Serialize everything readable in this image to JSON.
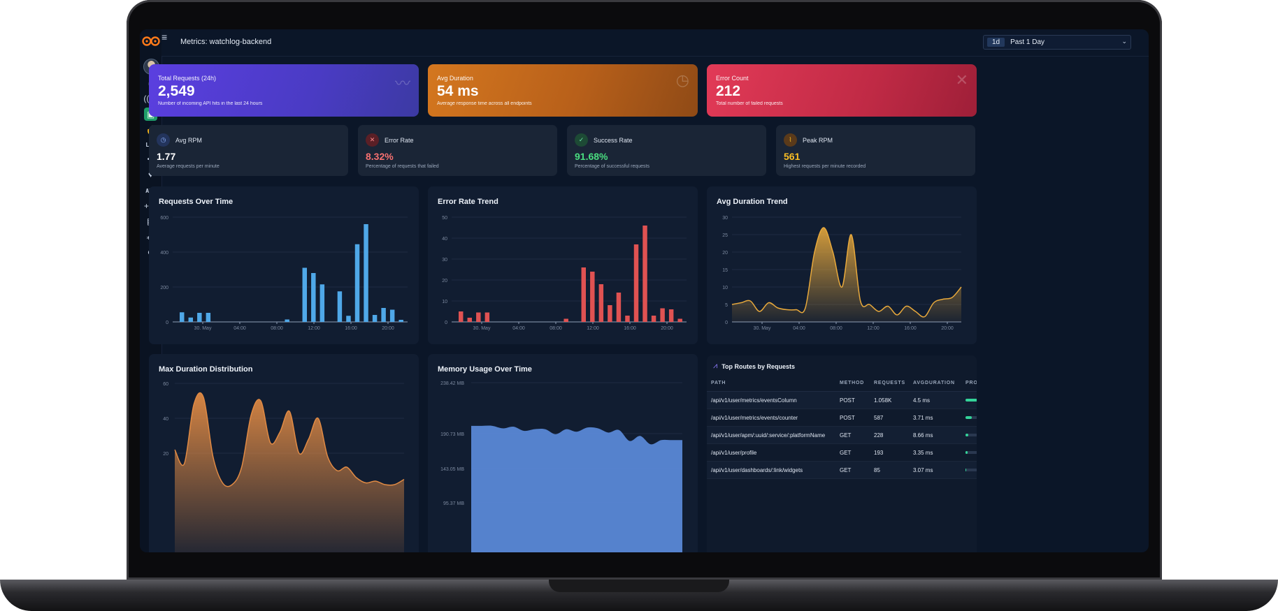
{
  "header": {
    "title": "Metrics: watchlog-backend",
    "range_chip": "1d",
    "range_label": "Past 1 Day"
  },
  "sidebar": {
    "text_items": [
      "LOG",
      "API"
    ]
  },
  "kpis": [
    {
      "label": "Total Requests (24h)",
      "value": "2,549",
      "sub": "Number of incoming API hits in the last 24 hours"
    },
    {
      "label": "Avg Duration",
      "value": "54 ms",
      "sub": "Average response time across all endpoints"
    },
    {
      "label": "Error Count",
      "value": "212",
      "sub": "Total number of failed requests"
    }
  ],
  "stats": [
    {
      "label": "Avg RPM",
      "value": "1.77",
      "sub": "Average requests per minute",
      "color": "#ffffff"
    },
    {
      "label": "Error Rate",
      "value": "8.32%",
      "sub": "Percentage of requests that failed",
      "color": "#f87171"
    },
    {
      "label": "Success Rate",
      "value": "91.68%",
      "sub": "Percentage of successful requests",
      "color": "#4ade80"
    },
    {
      "label": "Peak RPM",
      "value": "561",
      "sub": "Highest requests per minute recorded",
      "color": "#fbbf24"
    }
  ],
  "chart_data": [
    {
      "type": "bar",
      "title": "Requests Over Time",
      "color": "#4fa8e8",
      "ylim": [
        0,
        600
      ],
      "yticks": [
        "0",
        "200",
        "400",
        "600"
      ],
      "xticks": [
        "30. May",
        "04:00",
        "08:00",
        "12:00",
        "16:00",
        "20:00"
      ],
      "values": [
        55,
        25,
        52,
        52,
        0,
        0,
        0,
        0,
        0,
        0,
        0,
        0,
        14,
        0,
        310,
        280,
        215,
        0,
        175,
        35,
        445,
        560,
        40,
        80,
        70,
        12
      ]
    },
    {
      "type": "bar",
      "title": "Error Rate Trend",
      "color": "#e05252",
      "ylim": [
        0,
        50
      ],
      "yticks": [
        "0",
        "10",
        "20",
        "30",
        "40",
        "50"
      ],
      "xticks": [
        "30. May",
        "04:00",
        "08:00",
        "12:00",
        "16:00",
        "20:00"
      ],
      "values": [
        5,
        2,
        4.5,
        4.5,
        0,
        0,
        0,
        0,
        0,
        0,
        0,
        0,
        1.5,
        0,
        26,
        24,
        18,
        8,
        14,
        3,
        37,
        46,
        3,
        6.5,
        6,
        1.5
      ]
    },
    {
      "type": "area",
      "title": "Avg Duration Trend",
      "color": "#e8a93c",
      "ylim": [
        0,
        30
      ],
      "yticks": [
        "0",
        "5",
        "10",
        "15",
        "20",
        "25",
        "30"
      ],
      "xticks": [
        "30. May",
        "04:00",
        "08:00",
        "12:00",
        "16:00",
        "20:00"
      ],
      "values": [
        5,
        5.5,
        6,
        3,
        5.5,
        4,
        3.5,
        3.5,
        4,
        20,
        27,
        20,
        10,
        25,
        6,
        5,
        3,
        4.5,
        2,
        4.5,
        3,
        1.5,
        5.5,
        6.5,
        7,
        10
      ]
    },
    {
      "type": "area",
      "title": "Max Duration Distribution",
      "color": "#e08a44",
      "ylim": [
        0,
        60
      ],
      "yticks": [
        "20",
        "40",
        "60"
      ],
      "values": [
        22,
        14,
        48,
        52,
        18,
        3,
        2,
        12,
        42,
        50,
        26,
        32,
        44,
        20,
        28,
        40,
        18,
        10,
        12,
        6,
        3,
        4,
        2,
        2,
        5
      ]
    },
    {
      "type": "area",
      "title": "Memory Usage Over Time",
      "color": "#5a88d6",
      "yticks": [
        "95.37 MB",
        "143.05 MB",
        "190.73 MB",
        "238.42 MB"
      ],
      "values": [
        187,
        187,
        187,
        184,
        186,
        181,
        183,
        183,
        177,
        183,
        180,
        185,
        184,
        179,
        182,
        169,
        175,
        165,
        170,
        170,
        170
      ]
    }
  ],
  "routes": {
    "title": "Top Routes by Requests",
    "columns": [
      "PATH",
      "METHOD",
      "REQUESTS",
      "AVGDURATION",
      "PRO"
    ],
    "rows": [
      {
        "path": "/api/v1/user/metrics/eventsColumn",
        "method": "POST",
        "requests": "1.058K",
        "avg": "4.5 ms",
        "share": 0.95
      },
      {
        "path": "/api/v1/user/metrics/events/counter",
        "method": "POST",
        "requests": "587",
        "avg": "3.71 ms",
        "share": 0.5
      },
      {
        "path": "/api/v1/user/apm/:uuid/:service/:platformName",
        "method": "GET",
        "requests": "228",
        "avg": "8.66 ms",
        "share": 0.2
      },
      {
        "path": "/api/v1/user/profile",
        "method": "GET",
        "requests": "193",
        "avg": "3.35 ms",
        "share": 0.17
      },
      {
        "path": "/api/v1/user/dashboards/:link/widgets",
        "method": "GET",
        "requests": "85",
        "avg": "3.07 ms",
        "share": 0.08
      }
    ]
  }
}
